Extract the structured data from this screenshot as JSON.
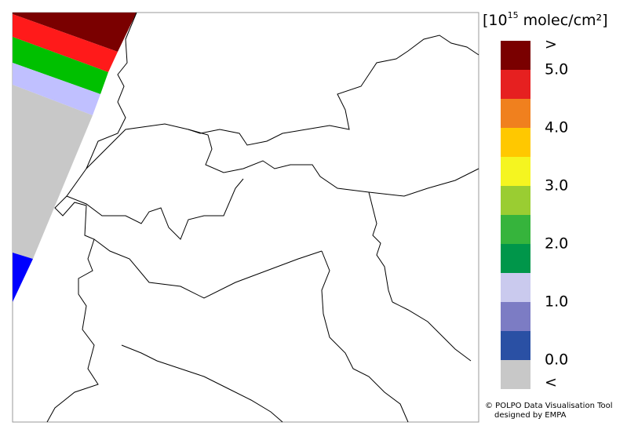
{
  "legend": {
    "unit_prefix": "[10",
    "unit_exponent": "15",
    "unit_suffix": " molec/cm²]",
    "labels": [
      ">",
      "5.0",
      "4.0",
      "3.0",
      "2.0",
      "1.0",
      "0.0",
      "<"
    ],
    "colors": [
      "#7a0000",
      "#e62020",
      "#f0801e",
      "#ffc800",
      "#f5f520",
      "#9acd32",
      "#36b43c",
      "#00964a",
      "#cacaee",
      "#7c7cc4",
      "#2a50a4",
      "#c8c8c8"
    ]
  },
  "credits": [
    "© POLPO Data Visualisation Tool",
    "designed by EMPA"
  ]
}
